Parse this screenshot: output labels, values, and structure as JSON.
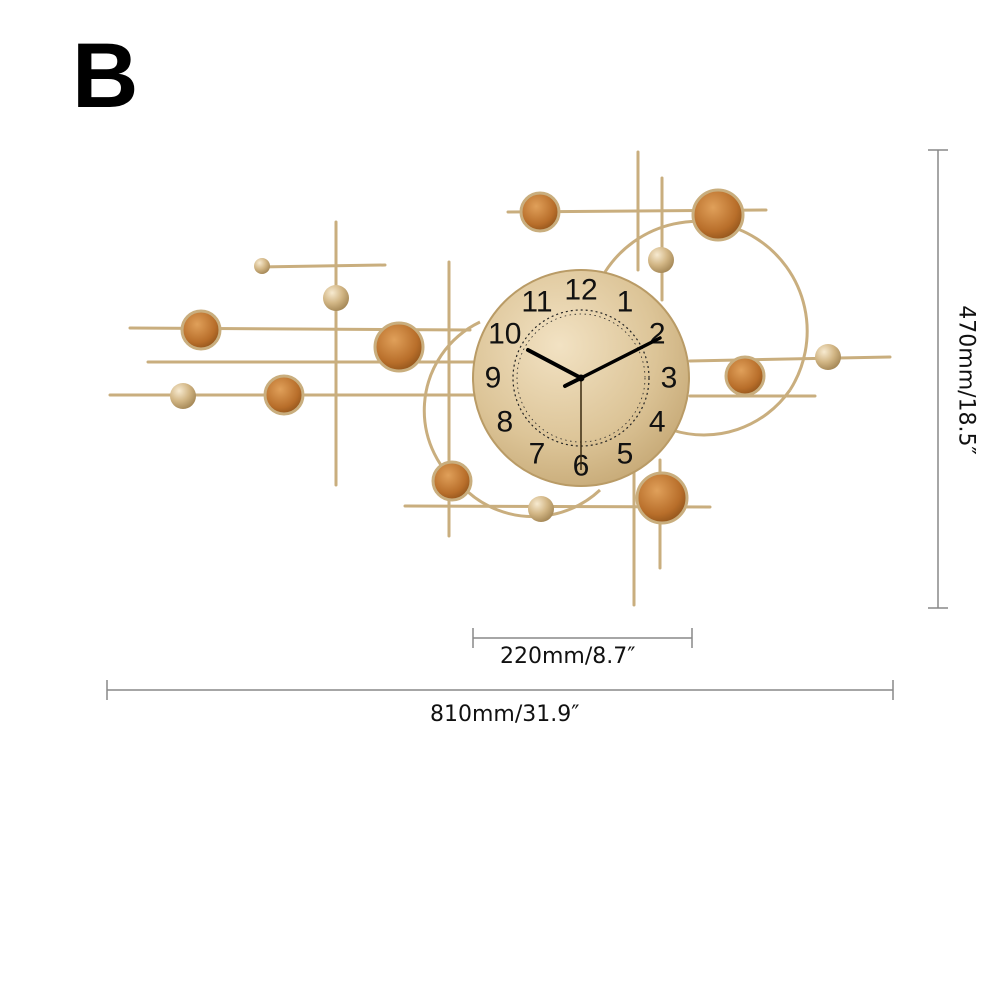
{
  "variant_label": "B",
  "dimensions": {
    "height_label": "470mm/18.5″",
    "dial_diameter_label": "220mm/8.7″",
    "total_width_label": "810mm/31.9″"
  },
  "clock": {
    "numerals": [
      "12",
      "1",
      "2",
      "3",
      "4",
      "5",
      "6",
      "7",
      "8",
      "9",
      "10",
      "11"
    ]
  },
  "colors": {
    "gold": "#c9ae7e",
    "gold_dark": "#a88c5a",
    "amber": "#b86e2a",
    "dimension_line": "#888888"
  }
}
